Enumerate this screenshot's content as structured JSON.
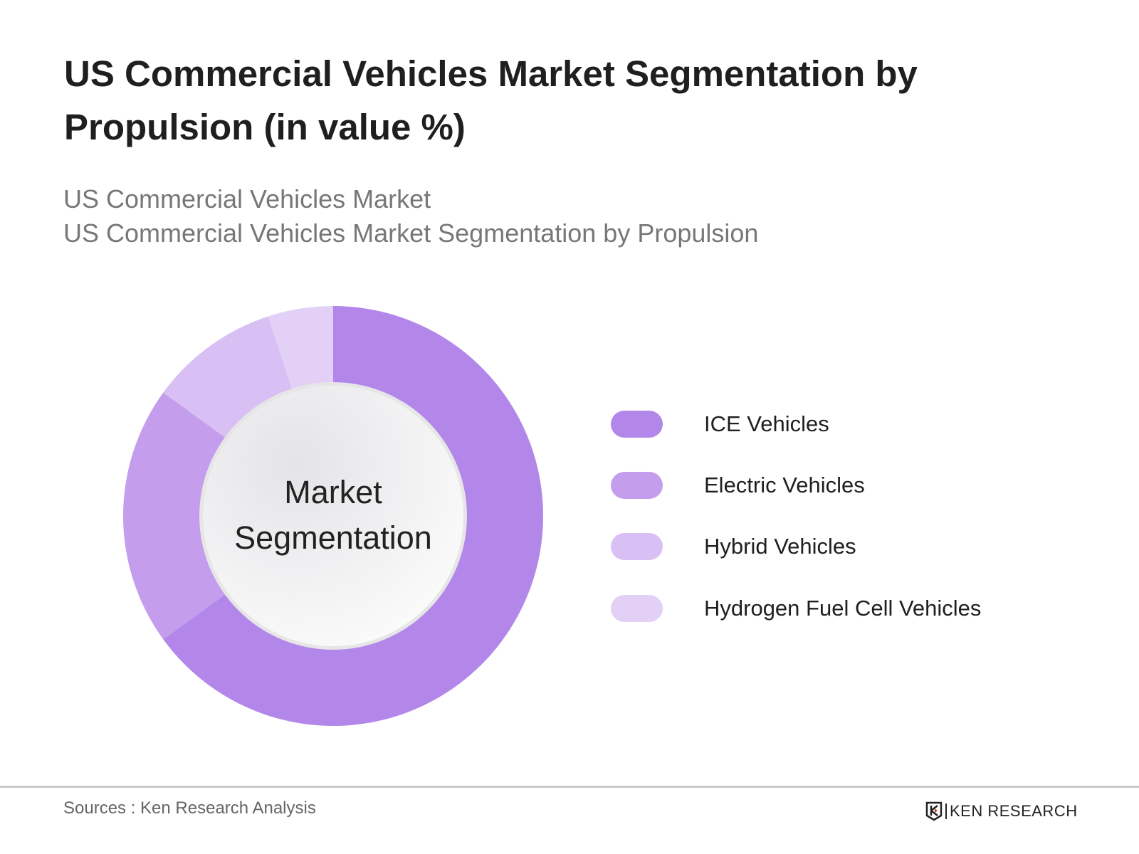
{
  "title": "US Commercial Vehicles Market Segmentation by Propulsion (in value %)",
  "subtitle_lines": [
    "US Commercial Vehicles Market",
    "US Commercial Vehicles Market Segmentation by Propulsion"
  ],
  "footer": {
    "sources": "Sources : Ken Research Analysis",
    "logo_text": "KEN RESEARCH"
  },
  "chart_data": {
    "type": "pie",
    "variant": "donut",
    "center_label": [
      "Market",
      "Segmentation"
    ],
    "legend_position": "right",
    "unit": "%",
    "series": [
      {
        "name": "ICE Vehicles",
        "value": 65,
        "color": "#b386ea"
      },
      {
        "name": "Electric Vehicles",
        "value": 20,
        "color": "#c49ded"
      },
      {
        "name": "Hybrid Vehicles",
        "value": 10,
        "color": "#d8c0f5"
      },
      {
        "name": "Hydrogen Fuel Cell Vehicles",
        "value": 5,
        "color": "#e2d0f7"
      }
    ]
  }
}
